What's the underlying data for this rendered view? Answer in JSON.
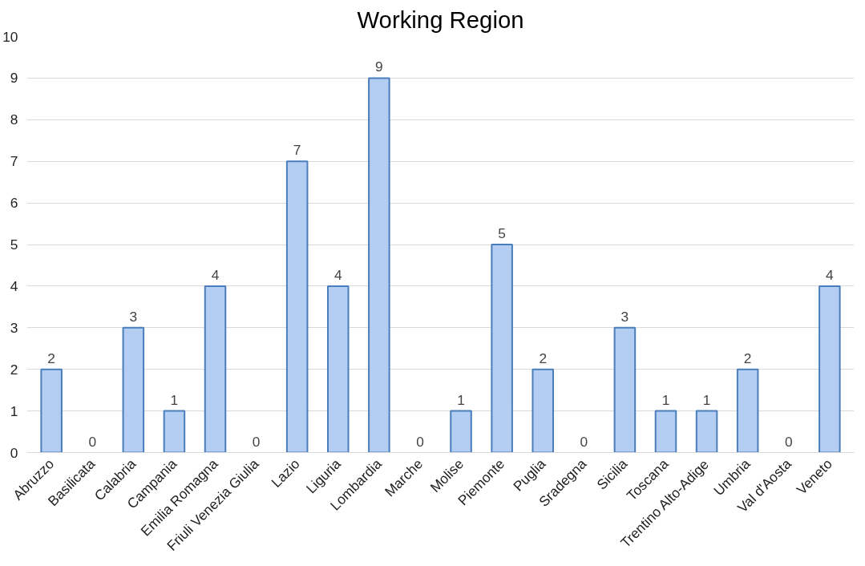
{
  "chart_data": {
    "type": "bar",
    "title": "Working Region",
    "categories": [
      "Abruzzo",
      "Basilicata",
      "Calabria",
      "Campania",
      "Emilia Romagna",
      "Friuli Venezia Giulia",
      "Lazio",
      "Liguria",
      "Lombardia",
      "Marche",
      "Molise",
      "Piemonte",
      "Puglia",
      "Sradegna",
      "Sicilia",
      "Toscana",
      "Trentino Alto-Adige",
      "Umbria",
      "Val d'Aosta",
      "Veneto"
    ],
    "values": [
      2,
      0,
      3,
      1,
      4,
      0,
      7,
      4,
      9,
      0,
      1,
      5,
      2,
      0,
      3,
      1,
      1,
      2,
      0,
      4
    ],
    "color": "#b4cdf3",
    "ylim": [
      0,
      10
    ],
    "yticks": [
      0,
      1,
      2,
      3,
      4,
      5,
      6,
      7,
      8,
      9,
      10
    ],
    "grid": "y",
    "data_labels": true
  }
}
